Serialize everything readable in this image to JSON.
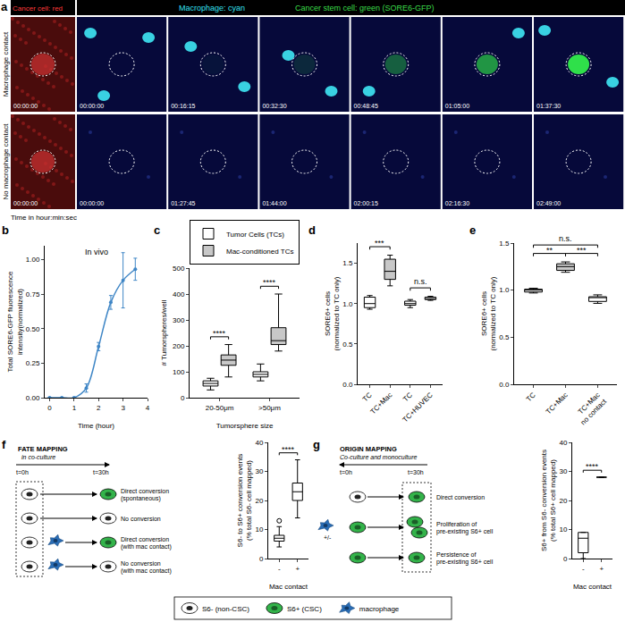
{
  "panel_a": {
    "label": "a",
    "header": {
      "red": "Cancer cell: red",
      "cyan": "Macrophage: cyan",
      "green": "Cancer stem cell: green (SORE6-GFP)"
    },
    "rows": [
      {
        "label": "Macrophage contact",
        "times": [
          "00:00:00",
          "00:00:00",
          "00:16:15",
          "00:32:30",
          "00:48:45",
          "01:05:00",
          "01:37:30"
        ]
      },
      {
        "label": "No macrophage contact",
        "times": [
          "00:00:00",
          "00:00:00",
          "01:27:45",
          "01:44:00",
          "02:00:15",
          "02:16:30",
          "02:49:00"
        ]
      }
    ],
    "caption": "Time in hour:min:sec"
  },
  "chart_data": [
    {
      "label": "b",
      "type": "line",
      "title": "In vivo",
      "x_label": "Time (hour)",
      "y_label": "Total SORE6-GFP fluorescence\nintensity(normalized)",
      "x": [
        0,
        0.5,
        1,
        1.5,
        2,
        2.5,
        3,
        3.5
      ],
      "series": [
        {
          "values": [
            0,
            0,
            0,
            0.07,
            0.37,
            0.69,
            0.85,
            0.93
          ],
          "errors": [
            0,
            0,
            0,
            0.03,
            0.03,
            0.05,
            0.2,
            0.08
          ],
          "color": "#3f86c6",
          "marker": "circle",
          "line_style": "smooth"
        }
      ],
      "xlim": [
        -0.2,
        4
      ],
      "xticks": [
        0,
        1,
        2,
        3,
        4
      ],
      "ylim": [
        0,
        1.1
      ],
      "yticks": [
        {
          "value": 0,
          "label": "0.00"
        },
        0.25,
        {
          "value": 0.5,
          "label": "0.50"
        },
        0.75,
        {
          "value": 1,
          "label": "1.00"
        }
      ]
    },
    {
      "label": "c",
      "type": "box",
      "y_label": "# Tumorspheres/well",
      "x_label": "Tumorsphere size",
      "categories": [
        "20-50μm",
        ">50μm"
      ],
      "series": [
        {
          "name": "Tumor Cells (TCs)",
          "color": "#ffffff",
          "min": [
            30,
            65
          ],
          "q1": [
            45,
            80
          ],
          "median": [
            55,
            90
          ],
          "q3": [
            65,
            100
          ],
          "max": [
            75,
            130
          ]
        },
        {
          "name": "Mac-conditioned TCs",
          "color": "#c8c8c8",
          "min": [
            80,
            180
          ],
          "q1": [
            125,
            205
          ],
          "median": [
            145,
            220
          ],
          "q3": [
            165,
            270
          ],
          "max": [
            205,
            400
          ]
        }
      ],
      "ylim": [
        0,
        500
      ],
      "yticks": [
        0,
        100,
        200,
        300,
        400,
        500
      ],
      "legend": "top",
      "annotations": [
        {
          "text": "****",
          "from": 0,
          "to": 0
        },
        {
          "text": "****",
          "from": 1,
          "to": 1
        }
      ]
    },
    {
      "label": "d",
      "type": "box",
      "y_label": "SORE6+ cells\n(normalized to TC only)",
      "categories": [
        "TC",
        "TC+Mac",
        "TC",
        "TC+HUVEC"
      ],
      "series": [
        {
          "colors": [
            "#ffffff",
            "#c8c8c8",
            "#ffffff",
            "#ffffff"
          ],
          "min": [
            0.93,
            1.22,
            0.95,
            1.04
          ],
          "q1": [
            0.95,
            1.3,
            0.98,
            1.05
          ],
          "median": [
            1.0,
            1.4,
            1.0,
            1.06
          ],
          "q3": [
            1.08,
            1.55,
            1.03,
            1.08
          ],
          "max": [
            1.1,
            1.6,
            1.05,
            1.09
          ]
        }
      ],
      "ylim": [
        0,
        1.75
      ],
      "yticks": [
        {
          "value": 0,
          "label": "0.0"
        },
        0.5,
        {
          "value": 1,
          "label": "1.0"
        },
        1.5
      ],
      "annotations": [
        {
          "text": "***",
          "from": 0,
          "to": 1
        },
        {
          "text": "n.s.",
          "from": 2,
          "to": 3
        }
      ]
    },
    {
      "label": "e",
      "type": "box",
      "y_label": "SORE6+ cells\n(normalized to TC only)",
      "categories": [
        "TC",
        "TC+Mac",
        "TC+Mac\nno contact"
      ],
      "series": [
        {
          "colors": [
            "#ffffff",
            "#c8c8c8",
            "#ffffff"
          ],
          "min": [
            0.97,
            1.19,
            0.86
          ],
          "q1": [
            0.98,
            1.21,
            0.88
          ],
          "median": [
            1.0,
            1.25,
            0.92
          ],
          "q3": [
            1.01,
            1.28,
            0.93
          ],
          "max": [
            1.02,
            1.3,
            0.95
          ]
        }
      ],
      "ylim": [
        0,
        1.5
      ],
      "yticks": [
        {
          "value": 0,
          "label": "0.0"
        },
        0.5,
        {
          "value": 1,
          "label": "1.0"
        },
        1.5
      ],
      "annotations": [
        {
          "text": "**",
          "from": 0,
          "to": 1
        },
        {
          "text": "***",
          "from": 1,
          "to": 2
        },
        {
          "text": "n.s.",
          "from": 0,
          "to": 2
        }
      ]
    },
    {
      "label": "f",
      "type": "box",
      "y_label": "S6- to S6+ conversion events\n(% total S6- cell mapped)",
      "x_label": "Mac contact",
      "categories": [
        "-",
        "+"
      ],
      "series": [
        {
          "colors": [
            "#ffffff",
            "#ffffff"
          ],
          "min": [
            4,
            14
          ],
          "q1": [
            6,
            20
          ],
          "median": [
            7,
            23
          ],
          "q3": [
            8,
            26
          ],
          "max": [
            11,
            34
          ],
          "outliers": [
            [
              13
            ],
            []
          ]
        }
      ],
      "ylim": [
        0,
        40
      ],
      "yticks": [
        0,
        10,
        20,
        30,
        40
      ],
      "annotations": [
        {
          "text": "****",
          "from": 0,
          "to": 1
        }
      ]
    },
    {
      "label": "g",
      "type": "box",
      "y_label": "S6+ from S6- conversion events\n(% total S6+ cell mapped)",
      "x_label": "Mac contact",
      "categories": [
        "-",
        "+"
      ],
      "series": [
        {
          "colors": [
            "#ffffff",
            "#ffffff"
          ],
          "min": [
            0,
            28
          ],
          "q1": [
            2,
            28
          ],
          "median": [
            7,
            28
          ],
          "q3": [
            9,
            28
          ],
          "max": [
            9,
            28
          ]
        }
      ],
      "ylim": [
        0,
        40
      ],
      "yticks": [
        0,
        10,
        20,
        30,
        40
      ],
      "annotations": [
        {
          "text": "****",
          "from": 0,
          "to": 1
        }
      ]
    }
  ],
  "schematics": {
    "f": {
      "title": "FATE MAPPING",
      "subtitle": "in co-culture",
      "start": "t=0h",
      "end": "t=30h",
      "rows": [
        {
          "mac": false,
          "to_csc": true,
          "text": "Direct conversion\n(spontaneous)"
        },
        {
          "mac": false,
          "to_csc": false,
          "text": "No conversion"
        },
        {
          "mac": true,
          "to_csc": true,
          "text": "Direct conversion\n(with mac contact)"
        },
        {
          "mac": true,
          "to_csc": false,
          "text": "No conversion\n(with mac contact)"
        }
      ]
    },
    "g": {
      "title": "ORIGIN MAPPING",
      "subtitle": "Co-culture and monoculture",
      "start": "t=0h",
      "end": "t=30h",
      "mac_label": "+/-",
      "rows": [
        {
          "from_csc": false,
          "to_count": 1,
          "text": "Direct conversion"
        },
        {
          "from_csc": true,
          "to_count": 2,
          "text": "Proliferation of\npre-existing S6+ cell"
        },
        {
          "from_csc": true,
          "to_count": 1,
          "text": "Persistence of\npre-existing S6+ cell"
        }
      ]
    }
  },
  "legend": {
    "items": [
      {
        "marker": "cell",
        "text": "S6- (non-CSC)"
      },
      {
        "marker": "stem_cell",
        "text": "S6+ (CSC)"
      },
      {
        "marker": "macrophage",
        "text": "macrophage"
      }
    ]
  }
}
